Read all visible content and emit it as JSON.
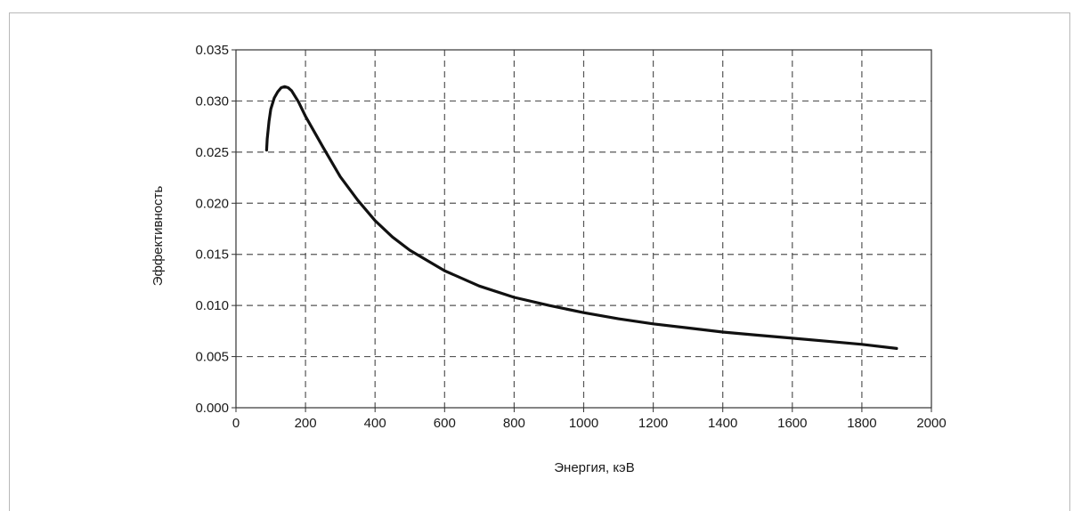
{
  "chart_data": {
    "type": "line",
    "title": "",
    "xlabel": "Энергия, кэВ",
    "ylabel": "Эффективность",
    "xlim": [
      0,
      2000
    ],
    "ylim": [
      0,
      0.035
    ],
    "x_ticks": [
      0,
      200,
      400,
      600,
      800,
      1000,
      1200,
      1400,
      1600,
      1800,
      2000
    ],
    "y_ticks": [
      "0.000",
      "0.005",
      "0.010",
      "0.015",
      "0.020",
      "0.025",
      "0.030",
      "0.035"
    ],
    "grid": "dashed",
    "legend": "none",
    "colors": {
      "line": "#111111",
      "grid": "#555555",
      "axis": "#333333"
    },
    "series": [
      {
        "x": [
          88,
          90,
          95,
          100,
          110,
          120,
          130,
          140,
          150,
          160,
          180,
          200,
          250,
          300,
          350,
          400,
          450,
          500,
          600,
          700,
          800,
          900,
          1000,
          1100,
          1200,
          1300,
          1400,
          1500,
          1600,
          1700,
          1800,
          1900
        ],
        "y": [
          0.0252,
          0.0263,
          0.028,
          0.0292,
          0.0303,
          0.0309,
          0.0313,
          0.0314,
          0.0313,
          0.031,
          0.0299,
          0.0285,
          0.0255,
          0.0226,
          0.0203,
          0.0183,
          0.0167,
          0.0154,
          0.0134,
          0.0119,
          0.0108,
          0.01,
          0.0093,
          0.0087,
          0.0082,
          0.0078,
          0.0074,
          0.0071,
          0.0068,
          0.0065,
          0.0062,
          0.0058
        ]
      }
    ]
  }
}
